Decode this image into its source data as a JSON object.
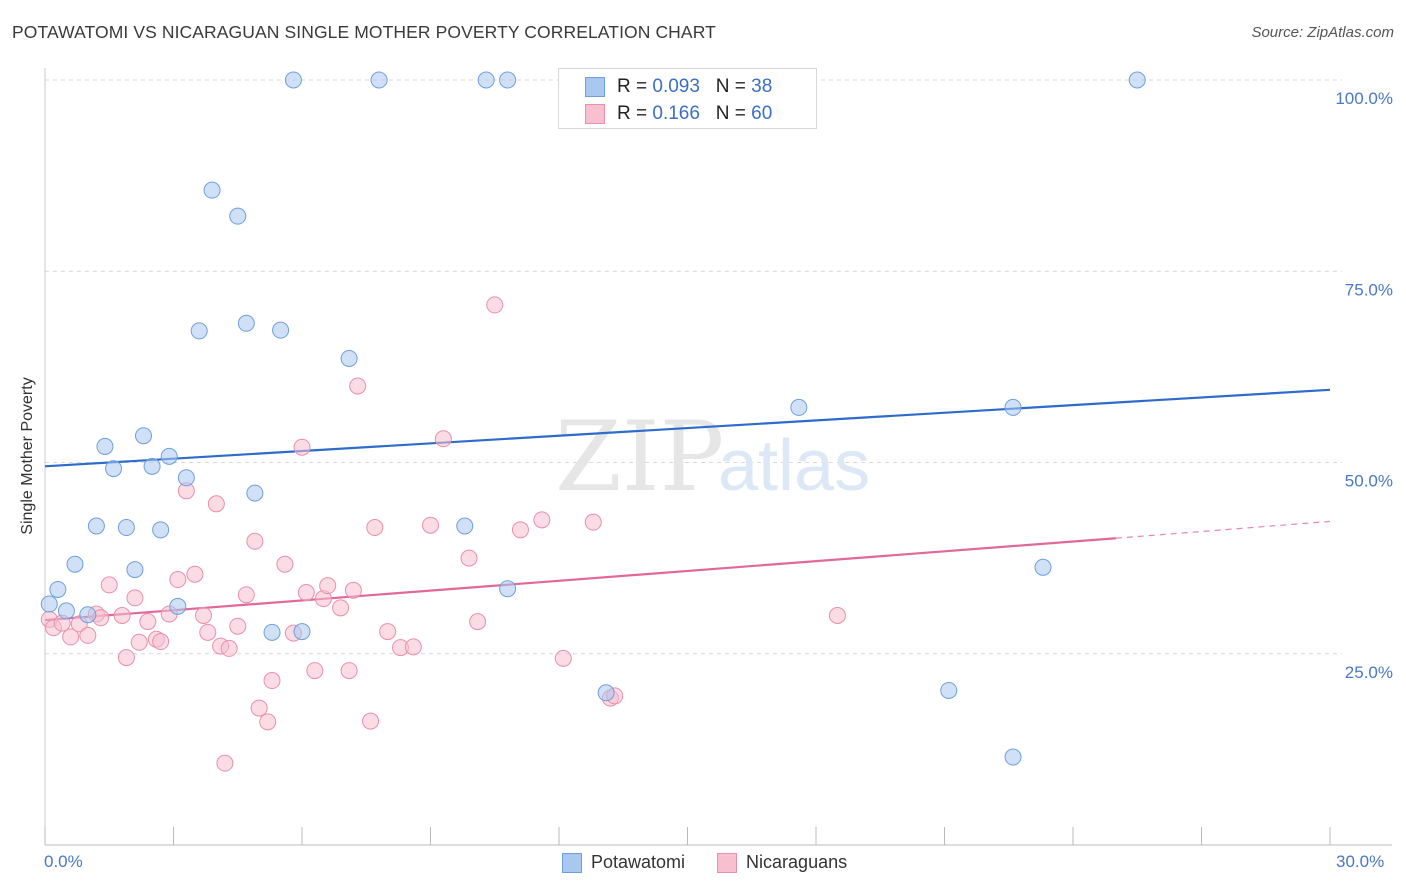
{
  "header": {
    "title": "POTAWATOMI VS NICARAGUAN SINGLE MOTHER POVERTY CORRELATION CHART",
    "source": "Source: ZipAtlas.com"
  },
  "legend": {
    "series1": {
      "r_label": "R = ",
      "r_value": "0.093",
      "n_label": "N = ",
      "n_value": "38"
    },
    "series2": {
      "r_label": "R = ",
      "r_value": "0.166",
      "n_label": "N = ",
      "n_value": "60"
    }
  },
  "bottom_legend": {
    "series1": "Potawatomi",
    "series2": "Nicaraguans"
  },
  "watermark": {
    "zip": "ZIP",
    "atlas": "atlas"
  },
  "colors": {
    "blue_fill": "#a9c8f0",
    "blue_stroke": "#6f9fdc",
    "blue_line": "#2d6ccb",
    "pink_fill": "#f7bfd0",
    "pink_stroke": "#e98fae",
    "pink_line": "#e0699a",
    "axis_text": "#4a78c2",
    "grid": "#d9d9d9"
  },
  "chart_data": {
    "type": "scatter",
    "title": "POTAWATOMI VS NICARAGUAN SINGLE MOTHER POVERTY CORRELATION CHART",
    "xlabel": "",
    "ylabel": "Single Mother Poverty",
    "xlim": [
      0,
      30
    ],
    "ylim": [
      0,
      100
    ],
    "x_tick_labels": [
      "0.0%",
      "30.0%"
    ],
    "y_ticks": [
      25,
      50,
      75,
      100
    ],
    "y_tick_labels": [
      "25.0%",
      "50.0%",
      "75.0%",
      "100.0%"
    ],
    "series": [
      {
        "name": "Potawatomi",
        "r": 0.093,
        "n": 38,
        "trend": {
          "x": [
            0,
            30
          ],
          "y": [
            49.5,
            59.5
          ]
        },
        "points": [
          [
            0.1,
            31.5
          ],
          [
            0.3,
            33.4
          ],
          [
            0.5,
            30.6
          ],
          [
            0.7,
            36.7
          ],
          [
            1.0,
            30.1
          ],
          [
            1.2,
            41.7
          ],
          [
            1.4,
            52.1
          ],
          [
            1.6,
            49.2
          ],
          [
            1.9,
            41.5
          ],
          [
            2.1,
            36.0
          ],
          [
            2.3,
            53.5
          ],
          [
            2.5,
            49.5
          ],
          [
            2.7,
            41.2
          ],
          [
            2.9,
            50.8
          ],
          [
            3.1,
            31.2
          ],
          [
            3.3,
            48.0
          ],
          [
            3.6,
            67.2
          ],
          [
            3.9,
            85.6
          ],
          [
            4.5,
            82.2
          ],
          [
            4.7,
            68.2
          ],
          [
            4.9,
            46.0
          ],
          [
            5.3,
            27.8
          ],
          [
            5.5,
            67.3
          ],
          [
            5.8,
            100.0
          ],
          [
            6.0,
            27.9
          ],
          [
            7.1,
            63.6
          ],
          [
            7.8,
            100.0
          ],
          [
            9.8,
            41.7
          ],
          [
            10.3,
            100.0
          ],
          [
            10.8,
            33.5
          ],
          [
            10.8,
            100.0
          ],
          [
            13.1,
            19.9
          ],
          [
            17.6,
            57.2
          ],
          [
            21.1,
            20.2
          ],
          [
            22.6,
            11.5
          ],
          [
            22.6,
            57.2
          ],
          [
            23.3,
            36.3
          ],
          [
            25.5,
            100.0
          ]
        ]
      },
      {
        "name": "Nicaraguans",
        "r": 0.166,
        "n": 60,
        "trend": {
          "x": [
            0,
            25
          ],
          "y": [
            29.4,
            40.1
          ]
        },
        "trend_dashed": {
          "x": [
            25,
            30
          ],
          "y": [
            40.1,
            42.3
          ]
        },
        "points": [
          [
            0.1,
            29.5
          ],
          [
            0.2,
            28.4
          ],
          [
            0.4,
            29.0
          ],
          [
            0.6,
            27.2
          ],
          [
            0.8,
            28.9
          ],
          [
            1.0,
            27.4
          ],
          [
            1.2,
            30.2
          ],
          [
            1.3,
            29.7
          ],
          [
            1.5,
            34.0
          ],
          [
            1.8,
            30.0
          ],
          [
            1.9,
            24.5
          ],
          [
            2.1,
            32.3
          ],
          [
            2.2,
            26.5
          ],
          [
            2.4,
            29.2
          ],
          [
            2.6,
            26.9
          ],
          [
            2.7,
            26.6
          ],
          [
            2.9,
            30.2
          ],
          [
            3.1,
            34.7
          ],
          [
            3.3,
            46.3
          ],
          [
            3.5,
            35.4
          ],
          [
            3.7,
            30.0
          ],
          [
            3.8,
            27.8
          ],
          [
            4.0,
            44.6
          ],
          [
            4.1,
            26.0
          ],
          [
            4.3,
            25.7
          ],
          [
            4.5,
            28.6
          ],
          [
            4.7,
            32.7
          ],
          [
            4.9,
            39.7
          ],
          [
            5.0,
            17.9
          ],
          [
            5.2,
            16.1
          ],
          [
            5.3,
            21.5
          ],
          [
            5.6,
            36.7
          ],
          [
            5.8,
            27.7
          ],
          [
            6.0,
            52.0
          ],
          [
            6.1,
            33.0
          ],
          [
            6.3,
            22.8
          ],
          [
            6.5,
            32.2
          ],
          [
            6.6,
            33.9
          ],
          [
            6.9,
            31.0
          ],
          [
            7.1,
            22.8
          ],
          [
            7.2,
            33.3
          ],
          [
            7.3,
            60.0
          ],
          [
            7.6,
            16.2
          ],
          [
            7.7,
            41.5
          ],
          [
            8.0,
            27.9
          ],
          [
            8.3,
            25.8
          ],
          [
            8.6,
            25.9
          ],
          [
            9.0,
            41.8
          ],
          [
            9.3,
            53.1
          ],
          [
            9.9,
            37.5
          ],
          [
            10.1,
            29.2
          ],
          [
            10.5,
            70.6
          ],
          [
            11.1,
            41.2
          ],
          [
            11.6,
            42.5
          ],
          [
            12.1,
            24.4
          ],
          [
            12.8,
            42.2
          ],
          [
            13.2,
            19.2
          ],
          [
            13.3,
            19.5
          ],
          [
            18.5,
            30.0
          ],
          [
            4.2,
            10.7
          ]
        ]
      }
    ]
  }
}
